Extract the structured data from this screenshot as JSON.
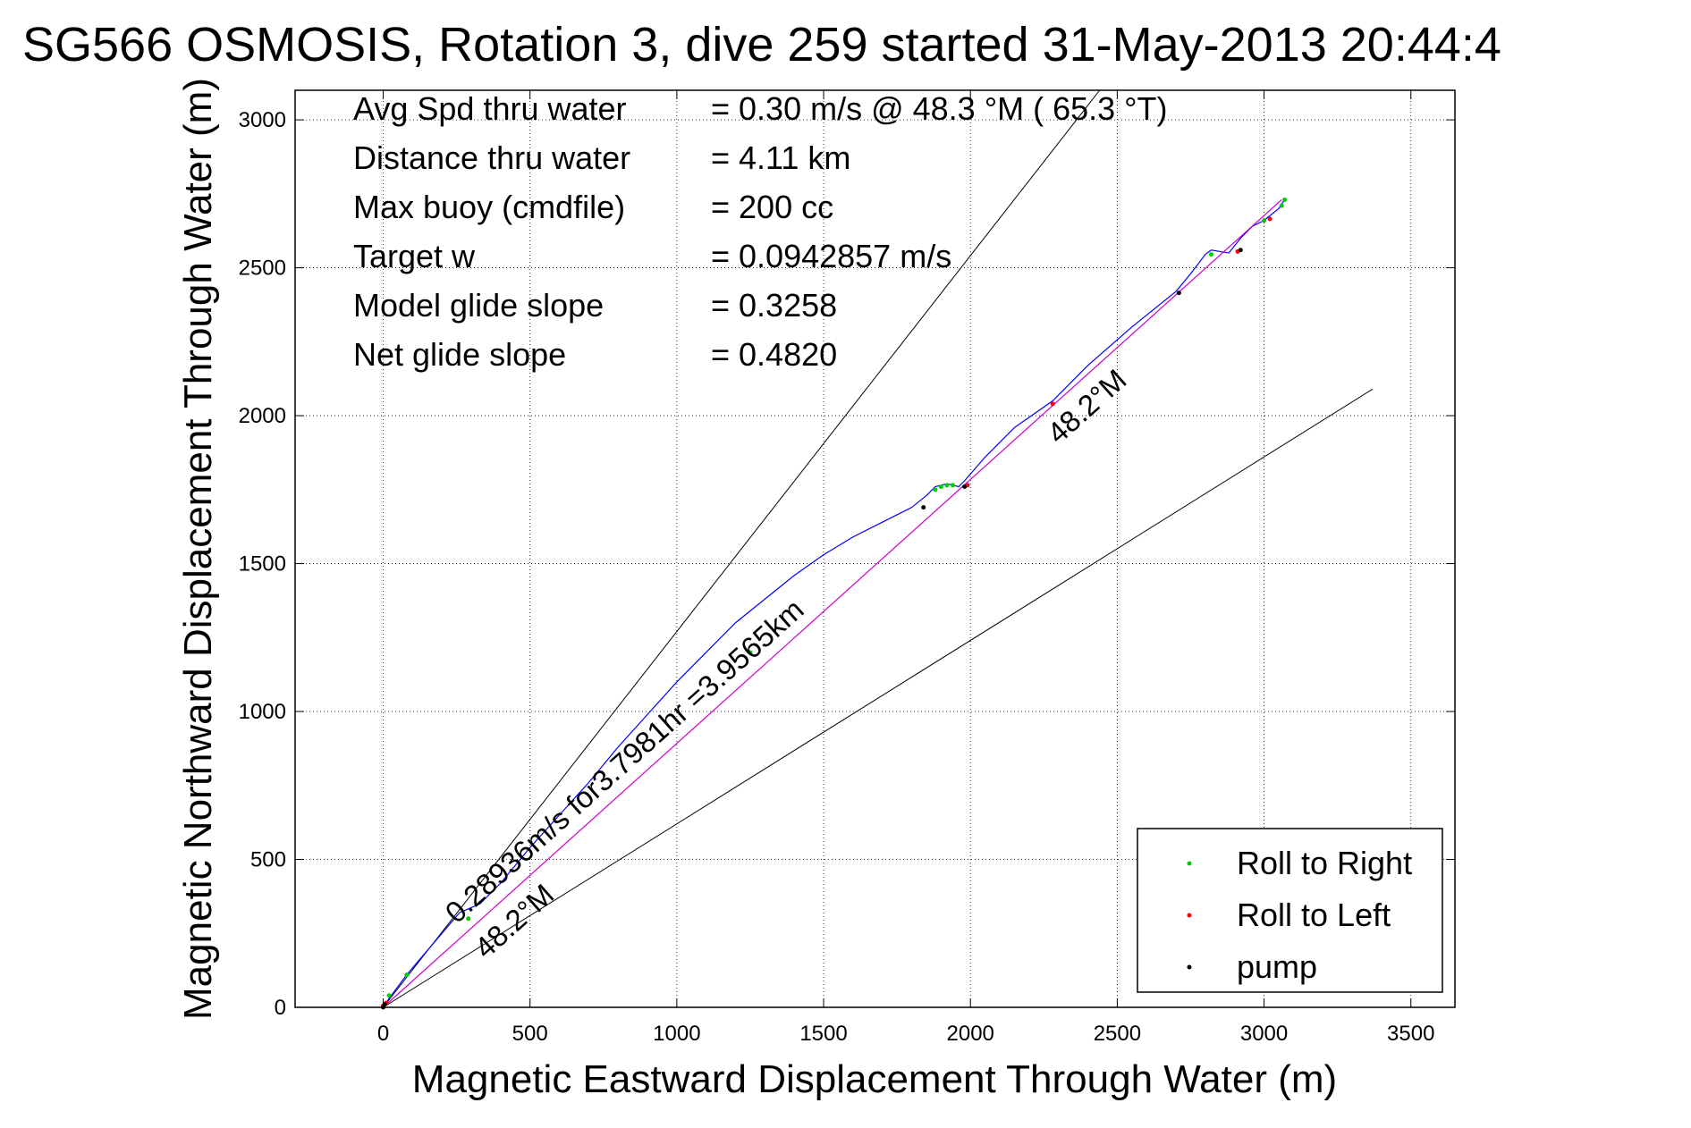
{
  "chart_data": {
    "type": "scatter",
    "title": "SG566 OSMOSIS, Rotation 3, dive 259 started 31-May-2013 20:44:4",
    "xlabel": "Magnetic Eastward Displacement Through Water (m)",
    "ylabel": "Magnetic Northward Displacement Through Water (m)",
    "xlim": [
      -300,
      3650
    ],
    "ylim": [
      0,
      3100
    ],
    "xticks": [
      0,
      500,
      1000,
      1500,
      2000,
      2500,
      3000,
      3500
    ],
    "yticks": [
      0,
      500,
      1000,
      1500,
      2000,
      2500,
      3000
    ],
    "grid": true,
    "legend_position": "bottom-right",
    "legend": [
      {
        "label": "Roll to Right",
        "color": "#00cc00"
      },
      {
        "label": "Roll to Left",
        "color": "#ff0000"
      },
      {
        "label": "pump",
        "color": "#000000"
      }
    ],
    "info_lines": [
      {
        "label": "Avg Spd thru water",
        "value": "=  0.30 m/s @  48.3 °M ( 65.3 °T)"
      },
      {
        "label": "Distance thru water",
        "value": "=  4.11 km"
      },
      {
        "label": "Max buoy (cmdfile)",
        "value": "= 200 cc"
      },
      {
        "label": "Target w",
        "value": "= 0.0942857 m/s"
      },
      {
        "label": "Model glide slope",
        "value": "= 0.3258"
      },
      {
        "label": "Net glide slope",
        "value": "= 0.4820"
      }
    ],
    "annotations": [
      {
        "text": "0.28936m/s for3.7981hr =3.9565km",
        "x": 250,
        "y": 280,
        "angle_deg": 41.8
      },
      {
        "text": "48.2°M",
        "x": 350,
        "y": 160,
        "angle_deg": 41.8
      },
      {
        "text": "48.2°M",
        "x": 2300,
        "y": 1900,
        "angle_deg": 41.8
      }
    ],
    "reference_lines": [
      {
        "name": "upper",
        "x": [
          0,
          2440
        ],
        "y": [
          0,
          3100
        ]
      },
      {
        "name": "lower",
        "x": [
          0,
          3370
        ],
        "y": [
          0,
          2090
        ]
      }
    ],
    "series": [
      {
        "name": "path",
        "color": "#0000ff",
        "x": [
          0,
          20,
          80,
          140,
          200,
          260,
          330,
          400,
          500,
          600,
          700,
          800,
          900,
          1000,
          1100,
          1200,
          1300,
          1400,
          1500,
          1600,
          1700,
          1800,
          1850,
          1880,
          1920,
          1960,
          1980,
          2050,
          2150,
          2280,
          2400,
          2550,
          2700,
          2750,
          2800,
          2820,
          2880,
          2920,
          2960,
          3000,
          3050,
          3070
        ],
        "y": [
          0,
          30,
          110,
          180,
          250,
          320,
          350,
          420,
          540,
          650,
          760,
          880,
          990,
          1100,
          1200,
          1300,
          1380,
          1460,
          1530,
          1590,
          1640,
          1690,
          1730,
          1760,
          1770,
          1760,
          1780,
          1860,
          1960,
          2050,
          2170,
          2300,
          2420,
          2480,
          2545,
          2560,
          2550,
          2600,
          2640,
          2660,
          2700,
          2730
        ]
      },
      {
        "name": "net",
        "color": "#cc00cc",
        "x": [
          0,
          3060
        ],
        "y": [
          0,
          2730
        ]
      },
      {
        "name": "Roll to Right",
        "color": "#00cc00",
        "x": [
          20,
          80,
          290,
          1250,
          1880,
          1900,
          1920,
          1940,
          2820,
          3000,
          3060,
          3070
        ],
        "y": [
          40,
          110,
          300,
          1200,
          1750,
          1760,
          1765,
          1765,
          2545,
          2660,
          2710,
          2730
        ]
      },
      {
        "name": "Roll to Left",
        "color": "#ff0000",
        "x": [
          0,
          10,
          1990,
          2280,
          2910,
          3020
        ],
        "y": [
          5,
          15,
          1765,
          2040,
          2555,
          2665
        ]
      },
      {
        "name": "pump",
        "color": "#000000",
        "x": [
          0,
          5,
          1840,
          1980,
          2710,
          2920
        ],
        "y": [
          0,
          10,
          1690,
          1760,
          2415,
          2560
        ]
      }
    ]
  }
}
